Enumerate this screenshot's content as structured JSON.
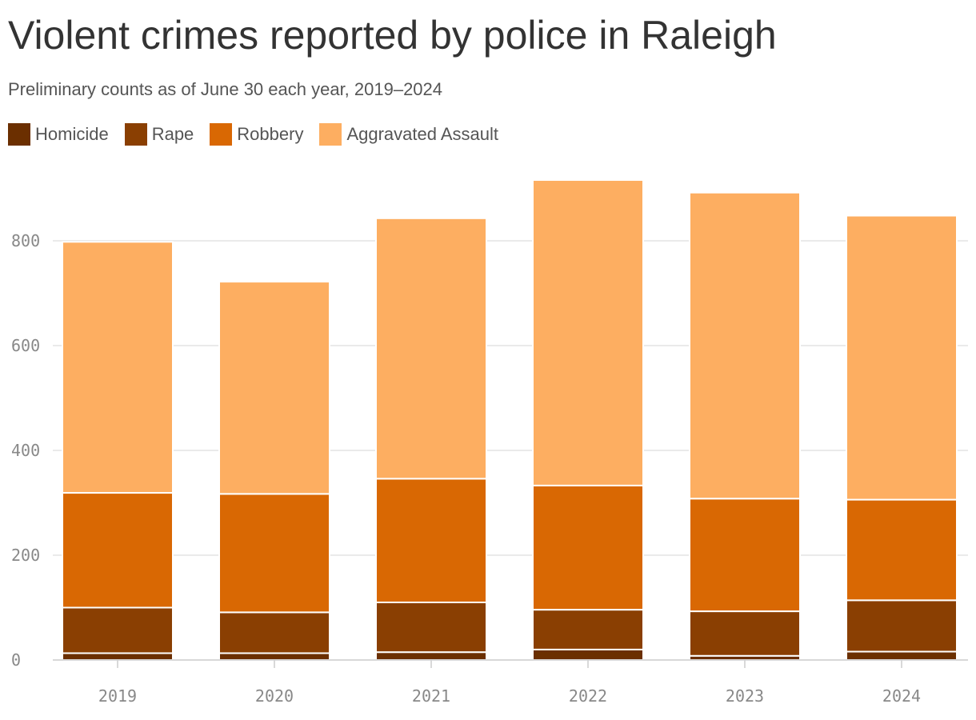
{
  "chart_data": {
    "type": "bar",
    "stacked": true,
    "title": "Violent crimes reported by police in Raleigh",
    "subtitle": "Preliminary counts as of June 30 each year, 2019–2024",
    "categories": [
      "2019",
      "2020",
      "2021",
      "2022",
      "2023",
      "2024"
    ],
    "series": [
      {
        "name": "Homicide",
        "color": "#6b2f00",
        "values": [
          13,
          13,
          15,
          20,
          8,
          16
        ]
      },
      {
        "name": "Rape",
        "color": "#8a3f02",
        "values": [
          87,
          78,
          95,
          76,
          85,
          98
        ]
      },
      {
        "name": "Robbery",
        "color": "#d96803",
        "values": [
          219,
          226,
          236,
          237,
          215,
          192
        ]
      },
      {
        "name": "Aggravated Assault",
        "color": "#fdae61",
        "values": [
          479,
          405,
          497,
          583,
          584,
          542
        ]
      }
    ],
    "ylim": [
      0,
      920
    ],
    "yticks": [
      0,
      200,
      400,
      600,
      800
    ],
    "grid": true,
    "legend_position": "top-left"
  }
}
